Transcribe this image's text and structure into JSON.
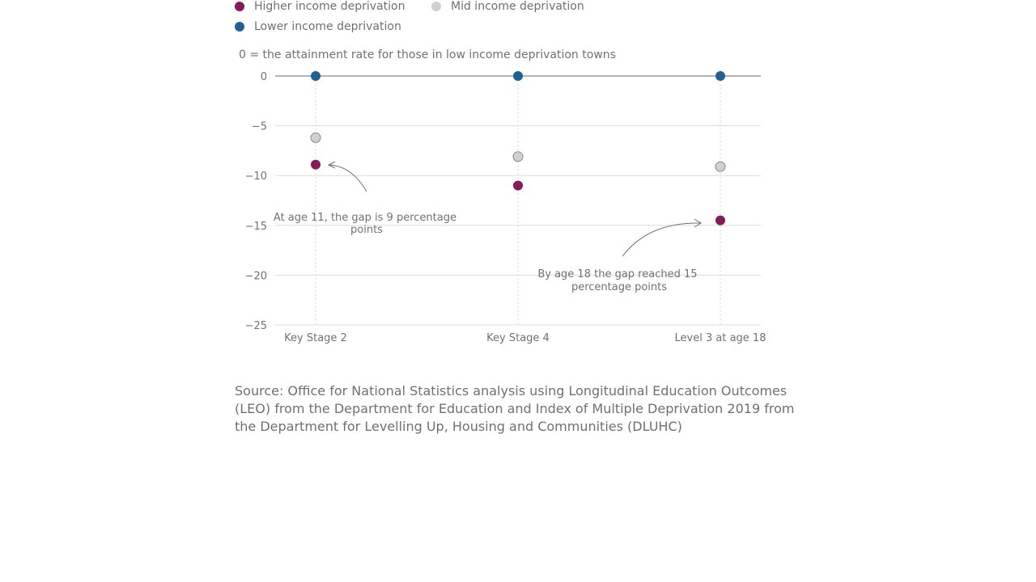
{
  "legend": {
    "items": [
      {
        "label": "Higher income deprivation",
        "color": "#871A5B"
      },
      {
        "label": "Mid income deprivation",
        "color": "#D0D0D0"
      },
      {
        "label": "Lower income deprivation",
        "color": "#206095"
      }
    ]
  },
  "subtitle": "0 = the attainment rate for those in low income deprivation towns",
  "chart_data": {
    "type": "scatter",
    "categories": [
      "Key Stage 2",
      "Key Stage 4",
      "Level 3 at age 18"
    ],
    "ylim": [
      -25,
      0
    ],
    "yticks": [
      0,
      -5,
      -10,
      -15,
      -20,
      -25
    ],
    "ytick_labels": [
      "0",
      "−5",
      "−10",
      "−15",
      "−20",
      "−25"
    ],
    "grid": true,
    "legend_position": "top-left",
    "series": [
      {
        "name": "Higher income deprivation",
        "color": "#871A5B",
        "values": [
          -8.9,
          -11.0,
          -14.5
        ]
      },
      {
        "name": "Mid income deprivation",
        "color": "#D0D0D0",
        "values": [
          -6.2,
          -8.1,
          -9.1
        ]
      },
      {
        "name": "Lower income deprivation",
        "color": "#206095",
        "values": [
          0,
          0,
          0
        ]
      }
    ],
    "annotations": [
      {
        "lines": [
          "At age 11, the gap is 9 percentage",
          "points"
        ]
      },
      {
        "lines": [
          "By age 18 the gap reached 15",
          "percentage points"
        ]
      }
    ]
  },
  "source": "Source: Office for National Statistics analysis using Longitudinal Education Outcomes (LEO) from the Department for Education and Index of Multiple Deprivation 2019 from the Department for Levelling Up, Housing and Communities (DLUHC)"
}
